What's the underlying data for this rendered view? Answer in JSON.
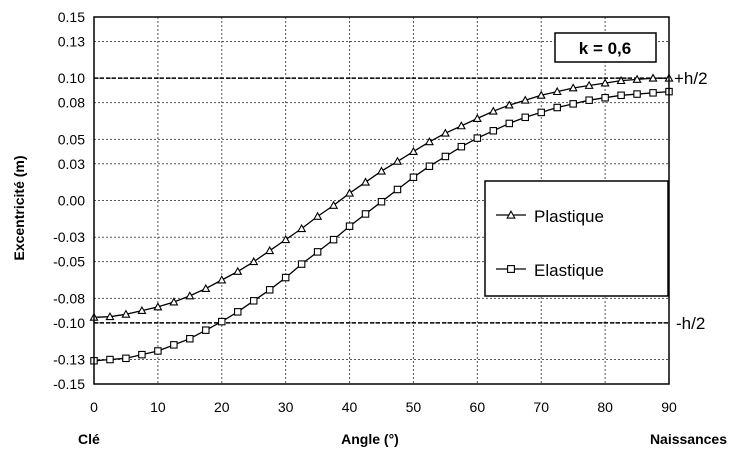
{
  "chart_data": {
    "type": "line",
    "xlabel": "Angle (°)",
    "ylabel": "Excentricité (m)",
    "xlim": [
      0,
      90
    ],
    "ylim": [
      -0.15,
      0.15
    ],
    "x_ticks": [
      0,
      10,
      20,
      30,
      40,
      50,
      60,
      70,
      80,
      90
    ],
    "y_ticks": [
      0.15,
      0.13,
      0.1,
      0.08,
      0.05,
      0.03,
      0.0,
      -0.03,
      -0.05,
      -0.08,
      -0.1,
      -0.13,
      -0.15
    ],
    "y_tick_labels": [
      "0.15",
      "0.13",
      "0.10",
      "0.08",
      "0.05",
      "0.03",
      "0.00",
      "-0.03",
      "-0.05",
      "-0.08",
      "-0.10",
      "-0.13",
      "-0.15"
    ],
    "x_left_label": "Clé",
    "x_right_label": "Naissances",
    "grid": "dashed",
    "legend_position": "center-right",
    "annotation_box": "k = 0,6",
    "reference_lines": [
      {
        "value": 0.1,
        "label": "+h/2"
      },
      {
        "value": -0.1,
        "label": "-h/2"
      }
    ],
    "series": [
      {
        "name": "Plastique",
        "marker": "triangle",
        "x": [
          0,
          2.5,
          5,
          7.5,
          10,
          12.5,
          15,
          17.5,
          20,
          22.5,
          25,
          27.5,
          30,
          32.5,
          35,
          37.5,
          40,
          42.5,
          45,
          47.5,
          50,
          52.5,
          55,
          57.5,
          60,
          62.5,
          65,
          67.5,
          70,
          72.5,
          75,
          77.5,
          80,
          82.5,
          85,
          87.5,
          90
        ],
        "y": [
          -0.0955,
          -0.095,
          -0.093,
          -0.09,
          -0.087,
          -0.083,
          -0.078,
          -0.072,
          -0.065,
          -0.058,
          -0.05,
          -0.041,
          -0.032,
          -0.023,
          -0.013,
          -0.004,
          0.006,
          0.015,
          0.024,
          0.032,
          0.04,
          0.048,
          0.055,
          0.061,
          0.067,
          0.073,
          0.078,
          0.082,
          0.086,
          0.089,
          0.092,
          0.094,
          0.096,
          0.098,
          0.099,
          0.1,
          0.1
        ]
      },
      {
        "name": "Elastique",
        "marker": "square",
        "x": [
          0,
          2.5,
          5,
          7.5,
          10,
          12.5,
          15,
          17.5,
          20,
          22.5,
          25,
          27.5,
          30,
          32.5,
          35,
          37.5,
          40,
          42.5,
          45,
          47.5,
          50,
          52.5,
          55,
          57.5,
          60,
          62.5,
          65,
          67.5,
          70,
          72.5,
          75,
          77.5,
          80,
          82.5,
          85,
          87.5,
          90
        ],
        "y": [
          -0.131,
          -0.13,
          -0.129,
          -0.126,
          -0.123,
          -0.118,
          -0.113,
          -0.106,
          -0.099,
          -0.091,
          -0.082,
          -0.073,
          -0.063,
          -0.052,
          -0.042,
          -0.032,
          -0.021,
          -0.011,
          -0.001,
          0.009,
          0.019,
          0.028,
          0.036,
          0.044,
          0.051,
          0.057,
          0.063,
          0.068,
          0.072,
          0.076,
          0.079,
          0.082,
          0.084,
          0.086,
          0.087,
          0.088,
          0.089
        ]
      }
    ]
  }
}
